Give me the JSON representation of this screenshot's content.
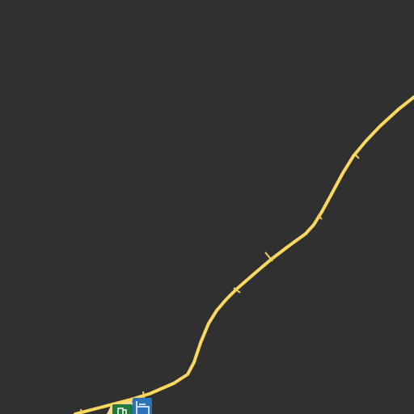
{
  "map": {
    "style": "dark",
    "colors": {
      "background": "#303030",
      "road": "#fad860",
      "road_tick": "#f4cf56",
      "poi_green": "#1f7a3c",
      "poi_blue": "#2c72b8",
      "poi_sand": "#f1d79a"
    },
    "features": [
      {
        "type": "road",
        "name": ""
      },
      {
        "type": "poi",
        "icon": "gas-station-icon"
      },
      {
        "type": "poi",
        "icon": "bed-icon"
      }
    ]
  }
}
